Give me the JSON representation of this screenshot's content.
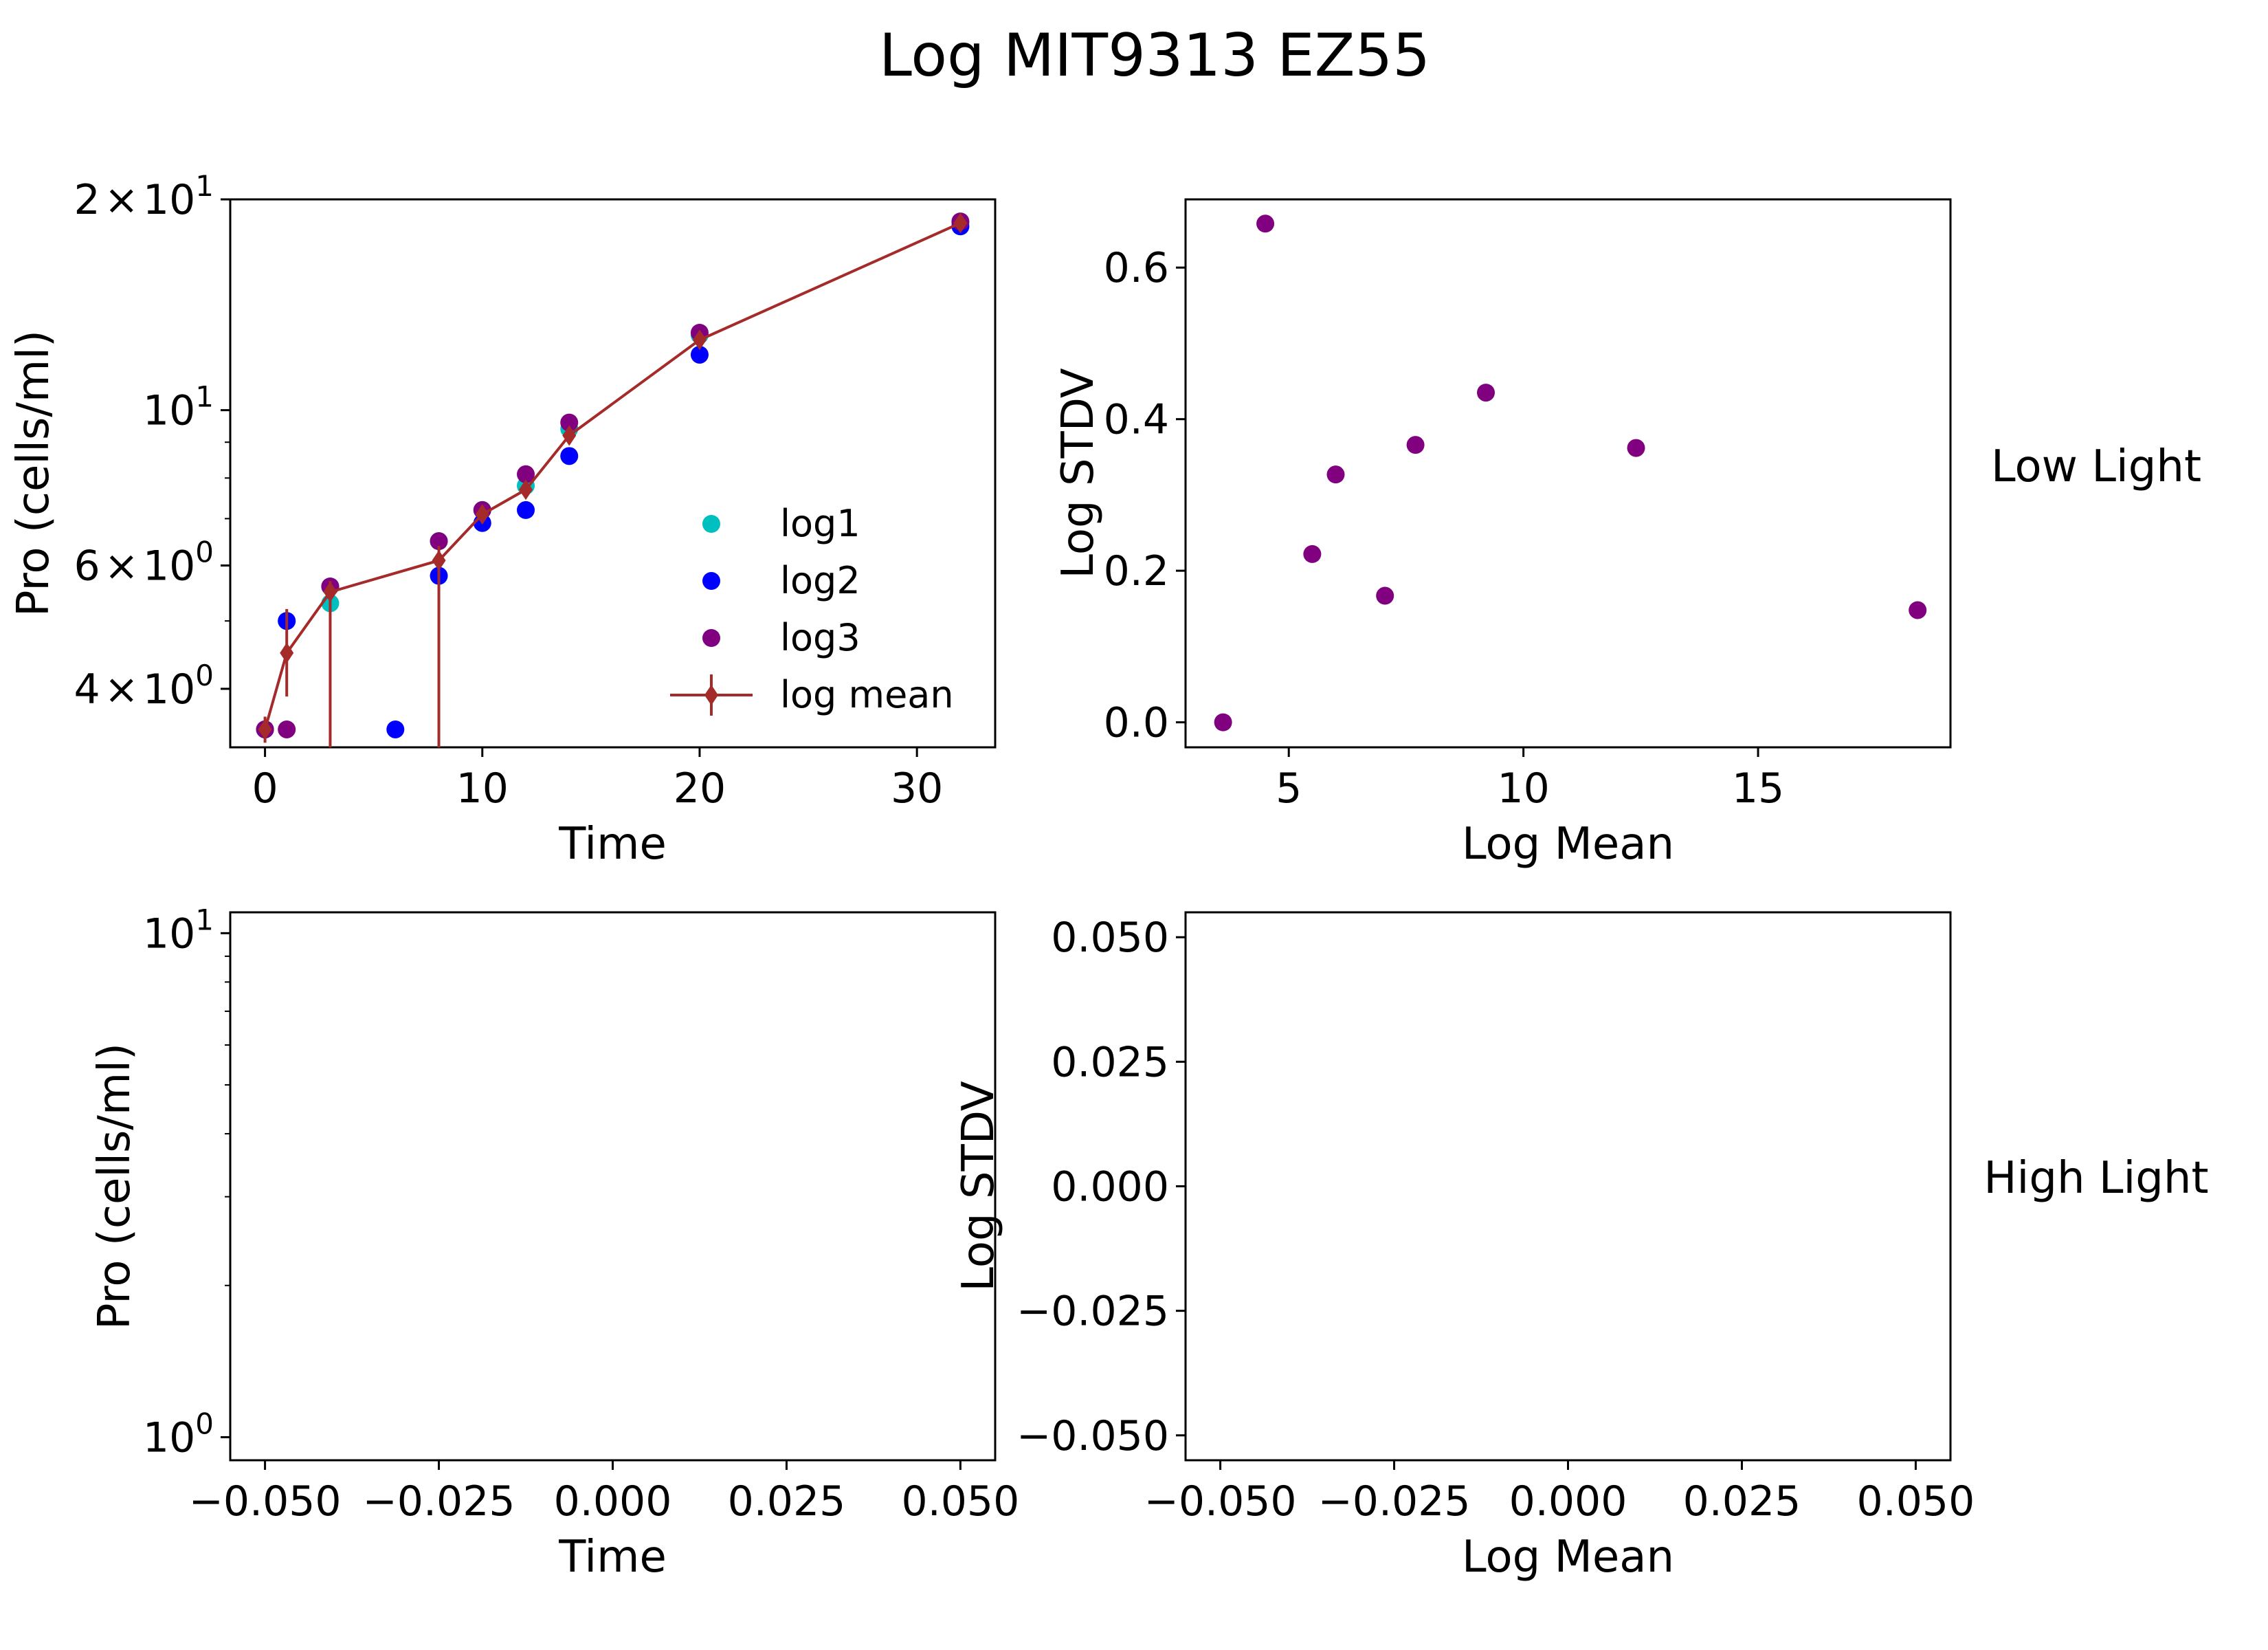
{
  "figure": {
    "title": "Log MIT9313 EZ55",
    "row_labels": [
      "Low Light",
      "High Light"
    ]
  },
  "legend": {
    "placement": "lower right",
    "entries": [
      {
        "label": "log1",
        "color": "#00BFBF",
        "marker": "dot"
      },
      {
        "label": "log2",
        "color": "#0000FF",
        "marker": "dot"
      },
      {
        "label": " log3",
        "color": "#800080",
        "marker": "dot"
      },
      {
        "label": "log mean",
        "color": "#A52A2A",
        "marker": "diamond-line-errorbar"
      }
    ]
  },
  "chart_data": [
    {
      "panel": "top-left",
      "type": "scatter",
      "xlabel": "Time",
      "ylabel": "Pro (cells/ml)",
      "yscale": "log",
      "xlim": [
        -1.6,
        33.6
      ],
      "ylim": [
        3.3,
        20
      ],
      "xticks": [
        0,
        10,
        20,
        30
      ],
      "xtick_labels": [
        "0",
        "10",
        "20",
        "30"
      ],
      "yticks": [
        4,
        6,
        10,
        20
      ],
      "ytick_labels": [
        {
          "mant": "4",
          "sep": "×",
          "base": "10",
          "exp": "0"
        },
        {
          "mant": "6",
          "sep": "×",
          "base": "10",
          "exp": "0"
        },
        {
          "mant": "",
          "sep": "",
          "base": "10",
          "exp": "1"
        },
        {
          "mant": "2",
          "sep": "×",
          "base": "10",
          "exp": "1"
        }
      ],
      "minor_yticks": [
        3,
        5,
        7,
        8,
        9
      ],
      "series": [
        {
          "name": "log1",
          "color": "#00BFBF",
          "x": [
            0,
            1,
            3,
            8,
            10,
            12,
            14,
            20,
            32
          ],
          "y": [
            3.5,
            5.0,
            5.3,
            6.5,
            7.2,
            7.8,
            9.4,
            12.8,
            18.5
          ]
        },
        {
          "name": "log2",
          "color": "#0000FF",
          "x": [
            0,
            1,
            3,
            6,
            8,
            10,
            12,
            14,
            20,
            32
          ],
          "y": [
            3.5,
            5.0,
            5.6,
            3.5,
            5.8,
            6.9,
            7.2,
            8.6,
            12.0,
            18.3
          ]
        },
        {
          "name": " log3",
          "color": "#800080",
          "x": [
            0,
            1,
            3,
            8,
            10,
            12,
            14,
            20,
            32
          ],
          "y": [
            3.5,
            3.5,
            5.6,
            6.5,
            7.2,
            8.1,
            9.6,
            12.9,
            18.6
          ]
        }
      ],
      "mean": {
        "name": "log mean",
        "color": "#A52A2A",
        "x": [
          0,
          1,
          3,
          8,
          10,
          12,
          14,
          20,
          32
        ],
        "y": [
          3.5,
          4.5,
          5.5,
          6.1,
          7.1,
          7.7,
          9.2,
          12.6,
          18.5
        ],
        "err_low": [
          3.35,
          3.9,
          0.5,
          0.5,
          6.9,
          7.5,
          9.0,
          12.3,
          18.3
        ],
        "err_high": [
          3.65,
          5.2,
          5.7,
          6.4,
          7.3,
          7.9,
          9.4,
          12.9,
          18.7
        ]
      }
    },
    {
      "panel": "top-right",
      "type": "scatter",
      "xlabel": "Log Mean",
      "ylabel": "Log STDV",
      "xlim": [
        2.8,
        19.1
      ],
      "ylim": [
        -0.033,
        0.69
      ],
      "xticks": [
        5,
        10,
        15
      ],
      "xtick_labels": [
        "5",
        "10",
        "15"
      ],
      "yticks": [
        0.0,
        0.2,
        0.4,
        0.6
      ],
      "ytick_labels": [
        "0.0",
        "0.2",
        "0.4",
        "0.6"
      ],
      "series": [
        {
          "name": "",
          "color": "#800080",
          "x": [
            3.6,
            4.5,
            5.5,
            6.0,
            7.05,
            7.7,
            9.2,
            12.4,
            18.4
          ],
          "y": [
            0.0,
            0.658,
            0.222,
            0.327,
            0.167,
            0.366,
            0.435,
            0.362,
            0.148
          ]
        }
      ]
    },
    {
      "panel": "bottom-left",
      "type": "scatter",
      "xlabel": "Time",
      "ylabel": "Pro (cells/ml)",
      "yscale": "log",
      "xlim": [
        -0.055,
        0.055
      ],
      "ylim": [
        0.9,
        11.0
      ],
      "xticks": [
        -0.05,
        -0.025,
        0.0,
        0.025,
        0.05
      ],
      "xtick_labels": [
        "−0.050",
        "−0.025",
        "0.000",
        "0.025",
        "0.050"
      ],
      "yticks": [
        1,
        10
      ],
      "ytick_labels": [
        {
          "mant": "",
          "sep": "",
          "base": "10",
          "exp": "0"
        },
        {
          "mant": "",
          "sep": "",
          "base": "10",
          "exp": "1"
        }
      ],
      "minor_yticks": [
        2,
        3,
        4,
        5,
        6,
        7,
        8,
        9
      ],
      "series": []
    },
    {
      "panel": "bottom-right",
      "type": "scatter",
      "xlabel": "Log Mean",
      "ylabel": "Log STDV",
      "xlim": [
        -0.055,
        0.055
      ],
      "ylim": [
        -0.055,
        0.055
      ],
      "xticks": [
        -0.05,
        -0.025,
        0.0,
        0.025,
        0.05
      ],
      "xtick_labels": [
        "−0.050",
        "−0.025",
        "0.000",
        "0.025",
        "0.050"
      ],
      "yticks": [
        -0.05,
        -0.025,
        0.0,
        0.025,
        0.05
      ],
      "ytick_labels": [
        "−0.050",
        "−0.025",
        "0.000",
        "0.025",
        "0.050"
      ],
      "series": []
    }
  ]
}
